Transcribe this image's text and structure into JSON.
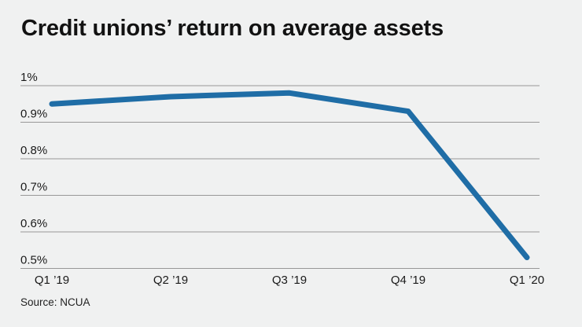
{
  "chart_data": {
    "type": "line",
    "title": "Credit unions’ return on average assets",
    "categories": [
      "Q1 ’19",
      "Q2 ’19",
      "Q3 ’19",
      "Q4 ’19",
      "Q1 ’20"
    ],
    "values": [
      0.95,
      0.97,
      0.98,
      0.93,
      0.53
    ],
    "unit": "%",
    "ylim": [
      0.5,
      1.0
    ],
    "yticks": [
      1.0,
      0.9,
      0.8,
      0.7,
      0.6,
      0.5
    ],
    "ytick_labels": [
      "1%",
      "0.9%",
      "0.8%",
      "0.7%",
      "0.6%",
      "0.5%"
    ],
    "xlabel": "",
    "ylabel": "",
    "grid": true,
    "legend": "none",
    "line_color": "#1f6da6",
    "grid_color": "#989898",
    "tick_label_color": "#1a1a1a",
    "background": "#f0f1f1"
  },
  "source": {
    "label": "Source: NCUA"
  }
}
